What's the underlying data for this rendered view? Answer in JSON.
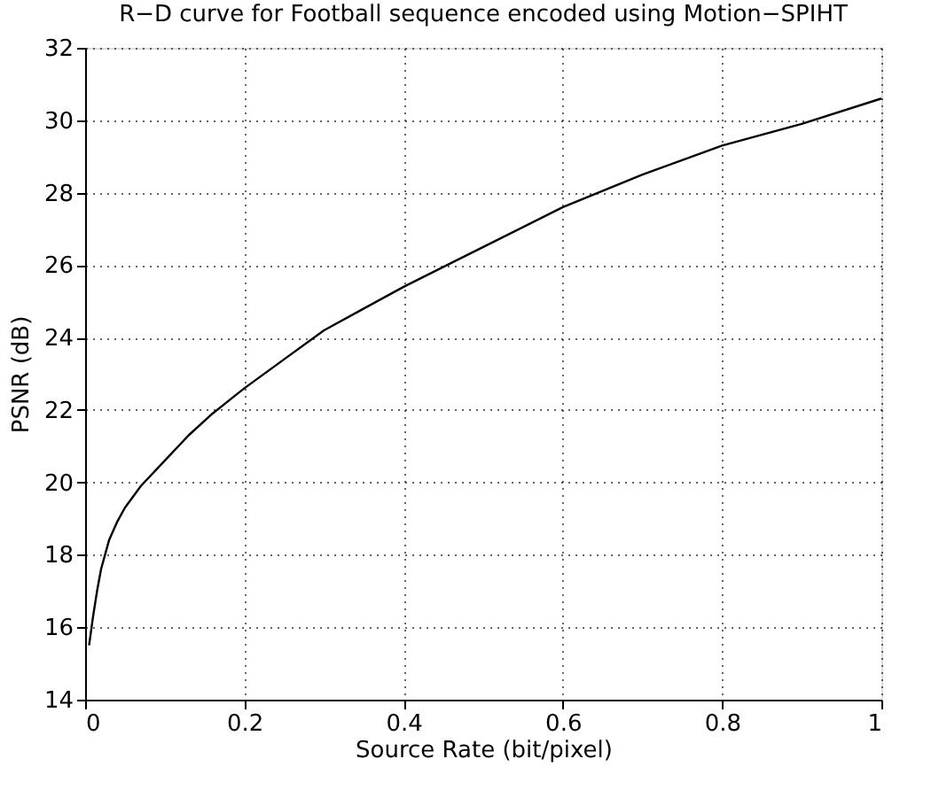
{
  "chart_data": {
    "type": "line",
    "title": "R−D curve for Football sequence encoded using Motion−SPIHT",
    "xlabel": "Source Rate (bit/pixel)",
    "ylabel": "PSNR (dB)",
    "x": [
      0.005,
      0.01,
      0.015,
      0.02,
      0.03,
      0.04,
      0.05,
      0.07,
      0.1,
      0.13,
      0.16,
      0.2,
      0.25,
      0.3,
      0.35,
      0.4,
      0.5,
      0.6,
      0.7,
      0.8,
      0.9,
      1.0
    ],
    "series": [
      {
        "color": "#000000",
        "values": [
          15.5,
          16.3,
          17.0,
          17.6,
          18.4,
          18.9,
          19.3,
          19.9,
          20.6,
          21.3,
          21.9,
          22.6,
          23.4,
          24.2,
          24.8,
          25.4,
          26.5,
          27.6,
          28.5,
          29.3,
          29.9,
          30.6
        ]
      }
    ],
    "xlim": [
      0,
      1
    ],
    "xticks": [
      0,
      0.2,
      0.4,
      0.6,
      0.8,
      1
    ],
    "ylim": [
      14,
      32
    ],
    "yticks": [
      14,
      16,
      18,
      20,
      22,
      24,
      26,
      28,
      30,
      32
    ],
    "grid": true,
    "legend": false,
    "marker": "none",
    "line_style": "solid"
  }
}
